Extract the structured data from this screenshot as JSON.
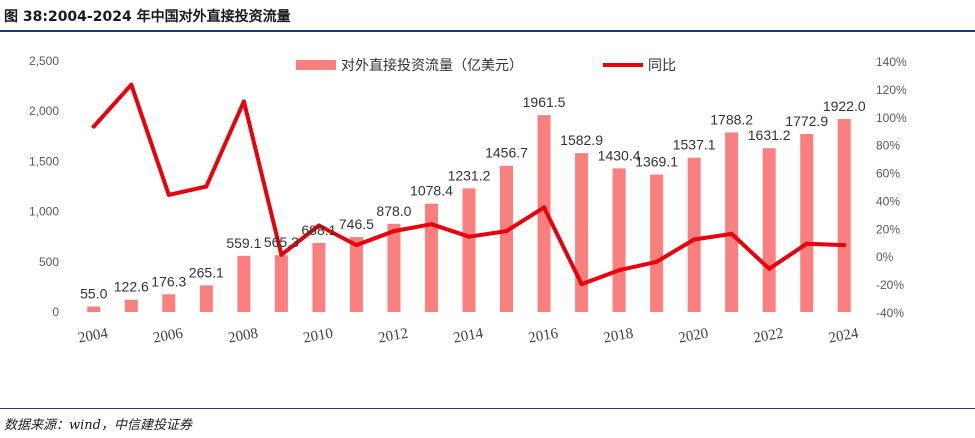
{
  "figure": {
    "title": "图 38:2004-2024 年中国对外直接投资流量",
    "source": "数据来源：wind，中信建投证券"
  },
  "chart_data": {
    "type": "bar",
    "categories": [
      "2004",
      "2005",
      "2006",
      "2007",
      "2008",
      "2009",
      "2010",
      "2011",
      "2012",
      "2013",
      "2014",
      "2015",
      "2016",
      "2017",
      "2018",
      "2019",
      "2020",
      "2021",
      "2022",
      "2023",
      "2024"
    ],
    "x_tick_labels": [
      "2004",
      "2006",
      "2008",
      "2010",
      "2012",
      "2014",
      "2016",
      "2018",
      "2020",
      "2022",
      "2024"
    ],
    "series": [
      {
        "name": "对外直接投资流量（亿美元）",
        "type": "bar",
        "axis": "left",
        "color": "#fa8080",
        "values": [
          55.0,
          122.6,
          176.3,
          265.1,
          559.1,
          565.3,
          688.1,
          746.5,
          878.0,
          1078.4,
          1231.2,
          1456.7,
          1961.5,
          1582.9,
          1430.4,
          1369.1,
          1537.1,
          1788.2,
          1631.2,
          1772.9,
          1922.0
        ],
        "labels": [
          "55.0",
          "122.6",
          "176.3",
          "265.1",
          "559.1",
          "565.3",
          "688.1",
          "746.5",
          "878.0",
          "1078.4",
          "1231.2",
          "1456.7",
          "1961.5",
          "1582.9",
          "1430.4",
          "1369.1",
          "1537.1",
          "1788.2",
          "1631.2",
          "1772.9",
          "1922.0"
        ]
      },
      {
        "name": "同比",
        "type": "line",
        "axis": "right",
        "color": "#e8000b",
        "values": [
          93,
          123,
          44,
          50,
          111,
          1,
          22,
          8,
          18,
          23,
          14,
          18,
          35,
          -20,
          -10,
          -4,
          12,
          16,
          -9,
          9,
          8
        ]
      }
    ],
    "y_left": {
      "range": [
        0,
        2500
      ],
      "ticks": [
        "0",
        "500",
        "1,000",
        "1,500",
        "2,000",
        "2,500"
      ]
    },
    "y_right": {
      "range": [
        -40,
        140
      ],
      "ticks": [
        "-40%",
        "-20%",
        "0%",
        "20%",
        "40%",
        "60%",
        "80%",
        "100%",
        "120%",
        "140%"
      ]
    },
    "grid": false,
    "legend": "top-center"
  }
}
